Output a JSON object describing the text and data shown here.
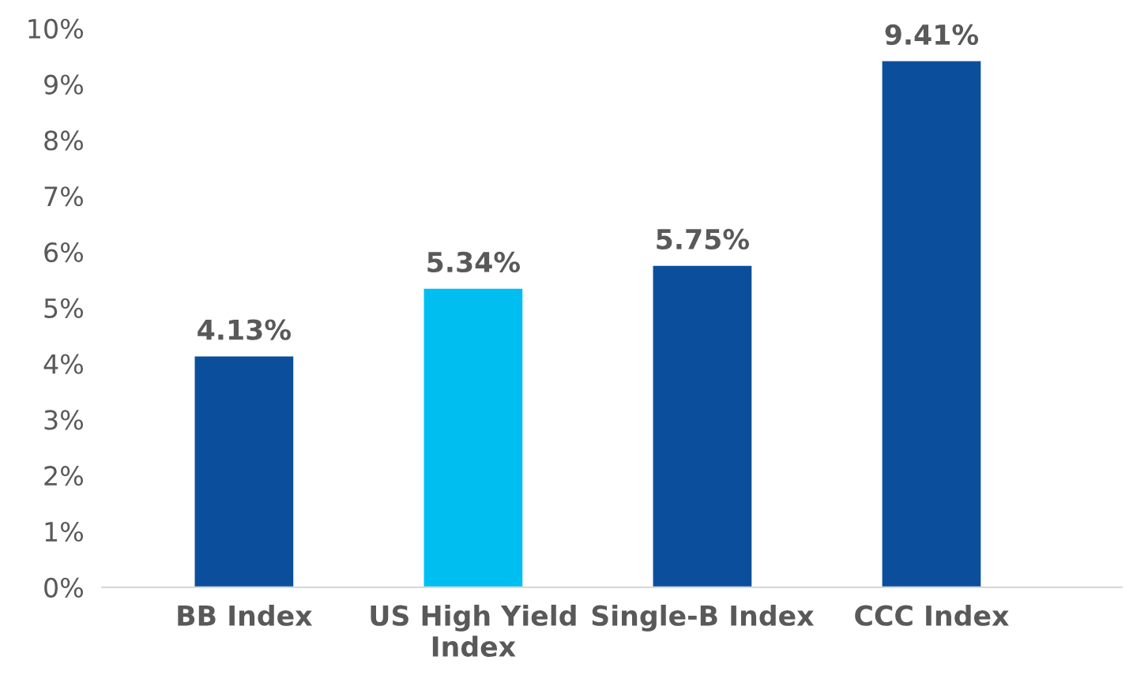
{
  "chart_data": {
    "type": "bar",
    "categories": [
      "BB Index",
      "US High Yield\nIndex",
      "Single-B Index",
      "CCC Index"
    ],
    "values": [
      4.13,
      5.34,
      5.75,
      9.41
    ],
    "colors": [
      "#0b4f9c",
      "#00bff0",
      "#0b4f9c",
      "#0b4f9c"
    ],
    "value_labels": [
      "4.13%",
      "5.34%",
      "5.75%",
      "9.41%"
    ],
    "ylim": [
      0,
      10
    ],
    "yticks": [
      {
        "value": 0,
        "label": "0%"
      },
      {
        "value": 1,
        "label": "1%"
      },
      {
        "value": 2,
        "label": "2%"
      },
      {
        "value": 3,
        "label": "3%"
      },
      {
        "value": 4,
        "label": "4%"
      },
      {
        "value": 5,
        "label": "5%"
      },
      {
        "value": 6,
        "label": "6%"
      },
      {
        "value": 7,
        "label": "7%"
      },
      {
        "value": 8,
        "label": "8%"
      },
      {
        "value": 9,
        "label": "9%"
      },
      {
        "value": 10,
        "label": "10%"
      }
    ],
    "grid": false,
    "legend": false
  }
}
